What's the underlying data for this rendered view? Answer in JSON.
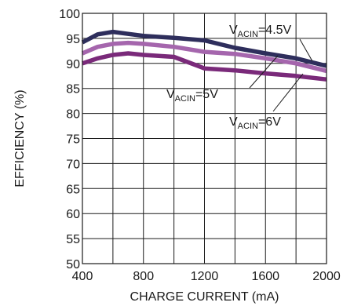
{
  "chart_data": {
    "type": "line",
    "title": "",
    "xlabel": "CHARGE CURRENT (mA)",
    "ylabel": "EFFICIENCY (%)",
    "xlim": [
      400,
      2000
    ],
    "ylim": [
      50,
      100
    ],
    "x_ticks": [
      400,
      800,
      1200,
      1600,
      2000
    ],
    "y_ticks": [
      50,
      55,
      60,
      65,
      70,
      75,
      80,
      85,
      90,
      95,
      100
    ],
    "grid": true,
    "legend": "none",
    "series": [
      {
        "name": "VACIN=4.5V",
        "label_main": "V",
        "label_sub": "ACIN",
        "label_value": "=4.5V",
        "color": "#2e2e5c",
        "x": [
          400,
          500,
          600,
          700,
          800,
          1000,
          1200,
          1400,
          1600,
          1800,
          2000
        ],
        "y": [
          94.2,
          95.8,
          96.3,
          95.9,
          95.5,
          95.1,
          94.6,
          93.1,
          92.0,
          91.0,
          89.5
        ]
      },
      {
        "name": "VACIN=5V",
        "label_main": "V",
        "label_sub": "ACIN",
        "label_value": "=5V",
        "color": "#a566ad",
        "x": [
          400,
          500,
          600,
          700,
          800,
          1000,
          1200,
          1400,
          1600,
          1800,
          2000
        ],
        "y": [
          92.0,
          93.3,
          93.9,
          94.1,
          93.9,
          93.3,
          92.3,
          91.9,
          91.0,
          90.0,
          88.5
        ]
      },
      {
        "name": "VACIN=6V",
        "label_main": "V",
        "label_sub": "ACIN",
        "label_value": "=6V",
        "color": "#7a2a7a",
        "x": [
          400,
          500,
          600,
          700,
          800,
          1000,
          1200,
          1400,
          1600,
          1800,
          2000
        ],
        "y": [
          90.0,
          91.0,
          91.7,
          92.0,
          91.7,
          91.3,
          89.0,
          88.6,
          88.0,
          87.5,
          86.8
        ]
      }
    ]
  }
}
